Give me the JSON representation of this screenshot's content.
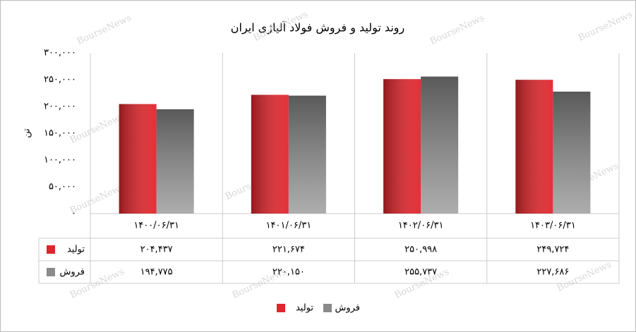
{
  "chart_data": {
    "type": "bar",
    "title": "روند تولید و فروش فولاد آلیاژی ایران",
    "y_label": "تن",
    "watermark": "BourseNews",
    "categories": [
      "۱۴۰۰/۰۶/۳۱",
      "۱۴۰۱/۰۶/۳۱",
      "۱۴۰۲/۰۶/۳۱",
      "۱۴۰۳/۰۶/۳۱"
    ],
    "series": [
      {
        "name": "تولید",
        "color": "#e0262c",
        "values": [
          204437,
          221674,
          250998,
          249724
        ],
        "value_labels": [
          "۲۰۴,۴۳۷",
          "۲۲۱,۶۷۴",
          "۲۵۰,۹۹۸",
          "۲۴۹,۷۲۴"
        ]
      },
      {
        "name": "فروش",
        "color": "#8a8a8a",
        "values": [
          194775,
          220150,
          255737,
          227686
        ],
        "value_labels": [
          "۱۹۴,۷۷۵",
          "۲۲۰,۱۵۰",
          "۲۵۵,۷۳۷",
          "۲۲۷,۶۸۶"
        ]
      }
    ],
    "ylim": [
      0,
      300000
    ],
    "yticks": [
      {
        "value": 0,
        "label": "۰"
      },
      {
        "value": 50000,
        "label": "۵۰,۰۰۰"
      },
      {
        "value": 100000,
        "label": "۱۰۰,۰۰۰"
      },
      {
        "value": 150000,
        "label": "۱۵۰,۰۰۰"
      },
      {
        "value": 200000,
        "label": "۲۰۰,۰۰۰"
      },
      {
        "value": 250000,
        "label": "۲۵۰,۰۰۰"
      },
      {
        "value": 300000,
        "label": "۳۰۰,۰۰۰"
      }
    ],
    "grid": false
  }
}
